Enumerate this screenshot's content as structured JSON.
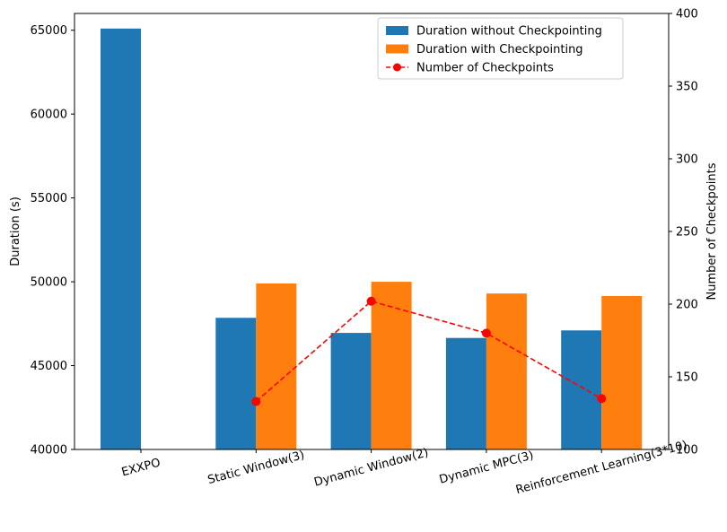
{
  "chart_data": {
    "type": "bar",
    "categories": [
      "EXXPO",
      "Static Window(3)",
      "Dynamic Window(2)",
      "Dynamic MPC(3)",
      "Reinforcement Learning(3*10)"
    ],
    "series": [
      {
        "name": "Duration without Checkpointing",
        "type": "bar",
        "axis": "left",
        "color": "#1f77b4",
        "values": [
          65100,
          47850,
          46950,
          46650,
          47100
        ]
      },
      {
        "name": "Duration with Checkpointing",
        "type": "bar",
        "axis": "left",
        "color": "#ff7f0e",
        "values": [
          null,
          49900,
          50000,
          49300,
          49150
        ]
      },
      {
        "name": "Number of Checkpoints",
        "type": "line",
        "axis": "right",
        "color": "#ff0000",
        "linestyle": "dashed",
        "marker": "circle",
        "values": [
          null,
          133,
          202,
          180,
          135
        ]
      }
    ],
    "ylabel": "Duration (s)",
    "ylabel_right": "Number of Checkpoints",
    "ylim": [
      40000,
      66000
    ],
    "ylim_right": [
      100,
      400
    ],
    "yticks": [
      40000,
      45000,
      50000,
      55000,
      60000,
      65000
    ],
    "yticks_right": [
      100,
      150,
      200,
      250,
      300,
      350,
      400
    ],
    "xtick_rotation_deg": 15,
    "legend_position": "top-right",
    "grid": false
  }
}
